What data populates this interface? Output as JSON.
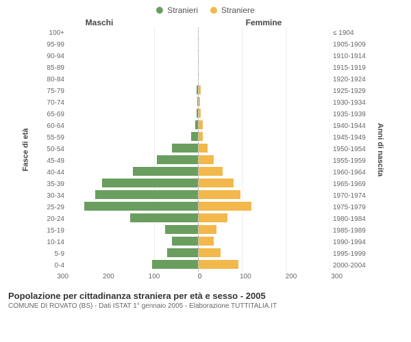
{
  "legend": {
    "male": {
      "label": "Stranieri",
      "color": "#6a9e5f"
    },
    "female": {
      "label": "Straniere",
      "color": "#f2b84b"
    }
  },
  "headers": {
    "left": "Maschi",
    "right": "Femmine"
  },
  "axis_labels": {
    "left": "Fasce di età",
    "right": "Anni di nascita"
  },
  "chart": {
    "type": "population-pyramid",
    "xmax": 300,
    "xticks": [
      0,
      100,
      200,
      300
    ],
    "bar_left_color": "#6a9e5f",
    "bar_right_color": "#f2b84b",
    "grid_color": "#eeeeee",
    "center_line_color": "#888888",
    "background_color": "#ffffff",
    "rows": [
      {
        "age": "100+",
        "birth": "≤ 1904",
        "m": 0,
        "f": 0
      },
      {
        "age": "95-99",
        "birth": "1905-1909",
        "m": 0,
        "f": 0
      },
      {
        "age": "90-94",
        "birth": "1910-1914",
        "m": 0,
        "f": 0
      },
      {
        "age": "85-89",
        "birth": "1915-1919",
        "m": 0,
        "f": 0
      },
      {
        "age": "80-84",
        "birth": "1920-1924",
        "m": 0,
        "f": 0
      },
      {
        "age": "75-79",
        "birth": "1925-1929",
        "m": 3,
        "f": 5
      },
      {
        "age": "70-74",
        "birth": "1930-1934",
        "m": 2,
        "f": 3
      },
      {
        "age": "65-69",
        "birth": "1935-1939",
        "m": 3,
        "f": 4
      },
      {
        "age": "60-64",
        "birth": "1940-1944",
        "m": 6,
        "f": 10
      },
      {
        "age": "55-59",
        "birth": "1945-1949",
        "m": 15,
        "f": 10
      },
      {
        "age": "50-54",
        "birth": "1950-1954",
        "m": 60,
        "f": 20
      },
      {
        "age": "45-49",
        "birth": "1955-1959",
        "m": 95,
        "f": 35
      },
      {
        "age": "40-44",
        "birth": "1960-1964",
        "m": 150,
        "f": 55
      },
      {
        "age": "35-39",
        "birth": "1965-1969",
        "m": 220,
        "f": 80
      },
      {
        "age": "30-34",
        "birth": "1970-1974",
        "m": 235,
        "f": 95
      },
      {
        "age": "25-29",
        "birth": "1975-1979",
        "m": 260,
        "f": 120
      },
      {
        "age": "20-24",
        "birth": "1980-1984",
        "m": 155,
        "f": 65
      },
      {
        "age": "15-19",
        "birth": "1985-1989",
        "m": 75,
        "f": 40
      },
      {
        "age": "10-14",
        "birth": "1990-1994",
        "m": 60,
        "f": 35
      },
      {
        "age": "5-9",
        "birth": "1995-1999",
        "m": 70,
        "f": 50
      },
      {
        "age": "0-4",
        "birth": "2000-2004",
        "m": 105,
        "f": 90
      }
    ]
  },
  "footer": {
    "title": "Popolazione per cittadinanza straniera per età e sesso - 2005",
    "subtitle": "COMUNE DI ROVATO (BS) - Dati ISTAT 1° gennaio 2005 - Elaborazione TUTTITALIA.IT"
  }
}
